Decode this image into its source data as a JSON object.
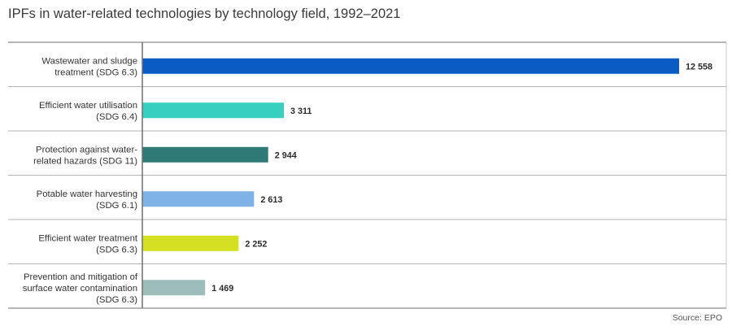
{
  "title": "IPFs in water-related technologies by technology field, 1992–2021",
  "source": "Source: EPO",
  "chart_data": {
    "type": "bar",
    "orientation": "horizontal",
    "title": "IPFs in water-related technologies by technology field, 1992–2021",
    "xlabel": "",
    "ylabel": "",
    "xlim": [
      0,
      13000
    ],
    "grid": false,
    "legend": "none",
    "categories": [
      [
        "Wastewater and sludge",
        "treatment (SDG 6.3)"
      ],
      [
        "Efficient water utilisation",
        "(SDG 6.4)"
      ],
      [
        "Protection against water-",
        "related hazards (SDG 11)"
      ],
      [
        "Potable water harvesting",
        "(SDG 6.1)"
      ],
      [
        "Efficient water treatment",
        "(SDG 6.3)"
      ],
      [
        "Prevention and mitigation of",
        "surface water contamination",
        "(SDG 6.3)"
      ]
    ],
    "values": [
      12558,
      3311,
      2944,
      2613,
      2252,
      1469
    ],
    "value_labels": [
      "12 558",
      "3 311",
      "2 944",
      "2 613",
      "2 252",
      "1 469"
    ],
    "colors": [
      "#0a5bc4",
      "#36cfc0",
      "#2f7a77",
      "#7fb2e6",
      "#d4e021",
      "#9dbdbb"
    ]
  }
}
